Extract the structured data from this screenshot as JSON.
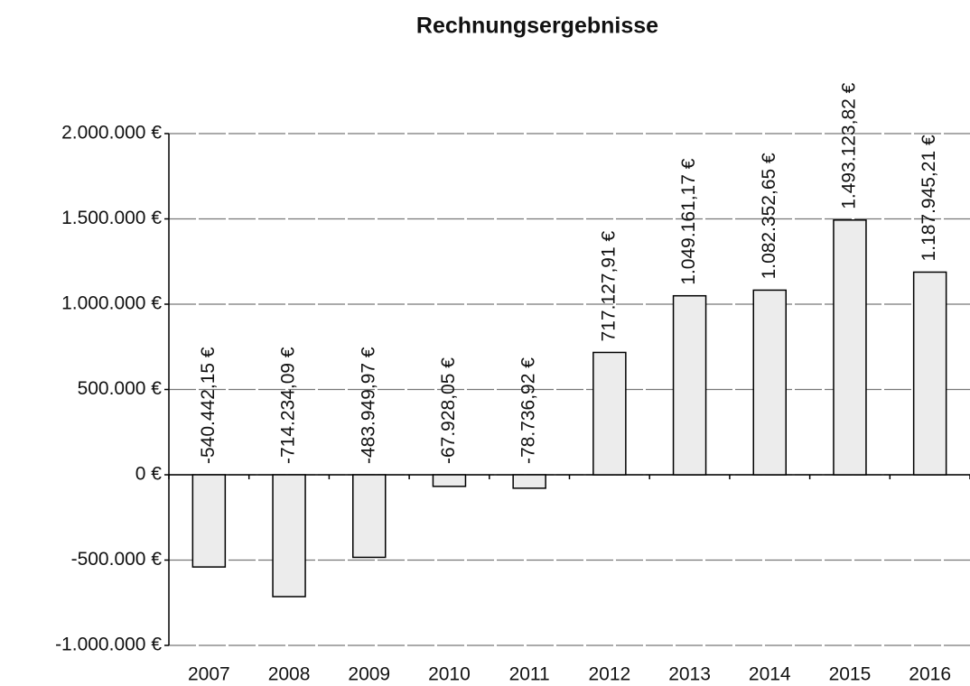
{
  "chart_data": {
    "type": "bar",
    "title": "Rechnungsergebnisse",
    "categories": [
      "2007",
      "2008",
      "2009",
      "2010",
      "2011",
      "2012",
      "2013",
      "2014",
      "2015",
      "2016"
    ],
    "values": [
      -540442.15,
      -714234.09,
      -483949.97,
      -67928.05,
      -78736.92,
      717127.91,
      1049161.17,
      1082352.65,
      1493123.82,
      1187945.21
    ],
    "value_labels": [
      "-540.442,15 €",
      "-714.234,09 €",
      "-483.949,97 €",
      "-67.928,05 €",
      "-78.736,92 €",
      "717.127,91 €",
      "1.049.161,17 €",
      "1.082.352,65 €",
      "1.493.123,82 €",
      "1.187.945,21 €"
    ],
    "color": "#ececec",
    "ylim": [
      -1000000,
      2000000
    ],
    "yticks": [
      {
        "value": -1000000,
        "label": "-1.000.000 €"
      },
      {
        "value": -500000,
        "label": "-500.000 €"
      },
      {
        "value": 0,
        "label": "0 €"
      },
      {
        "value": 500000,
        "label": "500.000 €"
      },
      {
        "value": 1000000,
        "label": "1.000.000 €"
      },
      {
        "value": 1500000,
        "label": "1.500.000 €"
      },
      {
        "value": 2000000,
        "label": "2.000.000 €"
      }
    ],
    "grid": true
  }
}
